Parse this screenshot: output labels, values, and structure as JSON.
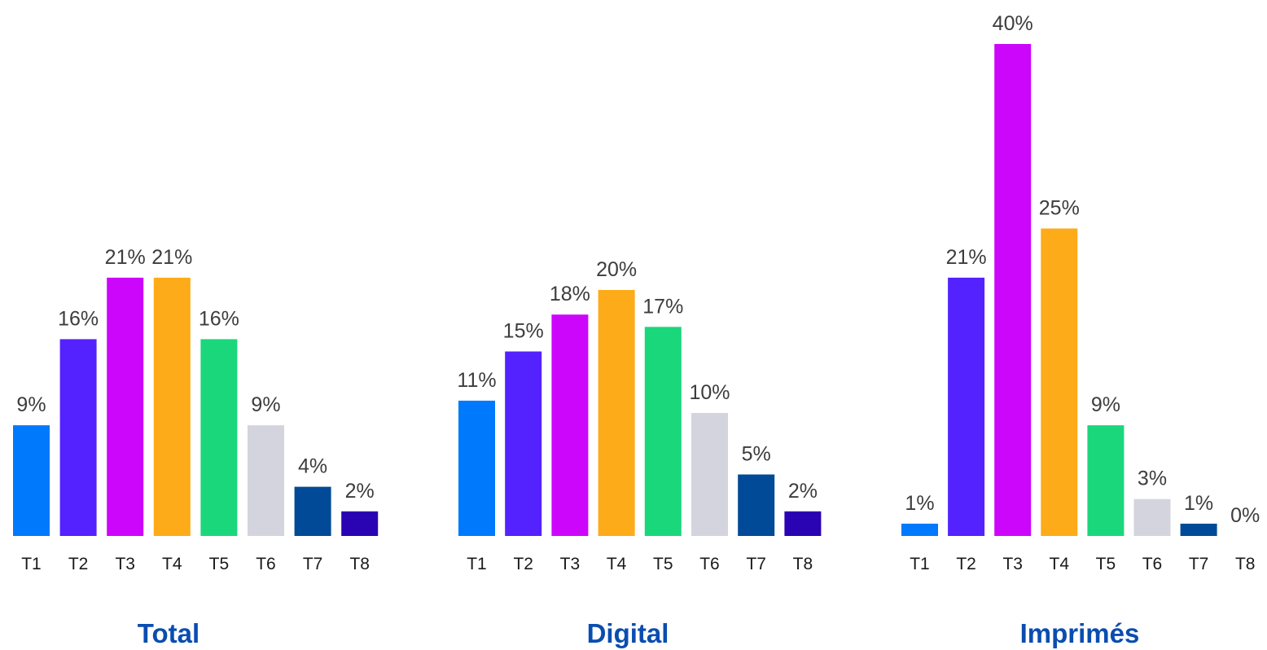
{
  "colors": {
    "title": "#0a4db0",
    "value_label": "#3d3d3d",
    "tick_label": "#1a1a1a",
    "bars": [
      "#0079fc",
      "#5421ff",
      "#cc06fb",
      "#fdab18",
      "#1ad77b",
      "#d4d4de",
      "#014a97",
      "#2a03b3"
    ]
  },
  "chart_data": [
    {
      "type": "bar",
      "title": "Total",
      "categories": [
        "T1",
        "T2",
        "T3",
        "T4",
        "T5",
        "T6",
        "T7",
        "T8"
      ],
      "values": [
        9,
        16,
        21,
        21,
        16,
        9,
        4,
        2
      ],
      "value_labels": [
        "9%",
        "16%",
        "21%",
        "21%",
        "16%",
        "9%",
        "4%",
        "2%"
      ],
      "ylim": [
        0,
        40
      ]
    },
    {
      "type": "bar",
      "title": "Digital",
      "categories": [
        "T1",
        "T2",
        "T3",
        "T4",
        "T5",
        "T6",
        "T7",
        "T8"
      ],
      "values": [
        11,
        15,
        18,
        20,
        17,
        10,
        5,
        2
      ],
      "value_labels": [
        "11%",
        "15%",
        "18%",
        "20%",
        "17%",
        "10%",
        "5%",
        "2%"
      ],
      "ylim": [
        0,
        40
      ]
    },
    {
      "type": "bar",
      "title": "Imprimés",
      "categories": [
        "T1",
        "T2",
        "T3",
        "T4",
        "T5",
        "T6",
        "T7",
        "T8"
      ],
      "values": [
        1,
        21,
        40,
        25,
        9,
        3,
        1,
        0
      ],
      "value_labels": [
        "1%",
        "21%",
        "40%",
        "25%",
        "9%",
        "3%",
        "1%",
        "0%"
      ],
      "ylim": [
        0,
        40
      ]
    }
  ]
}
